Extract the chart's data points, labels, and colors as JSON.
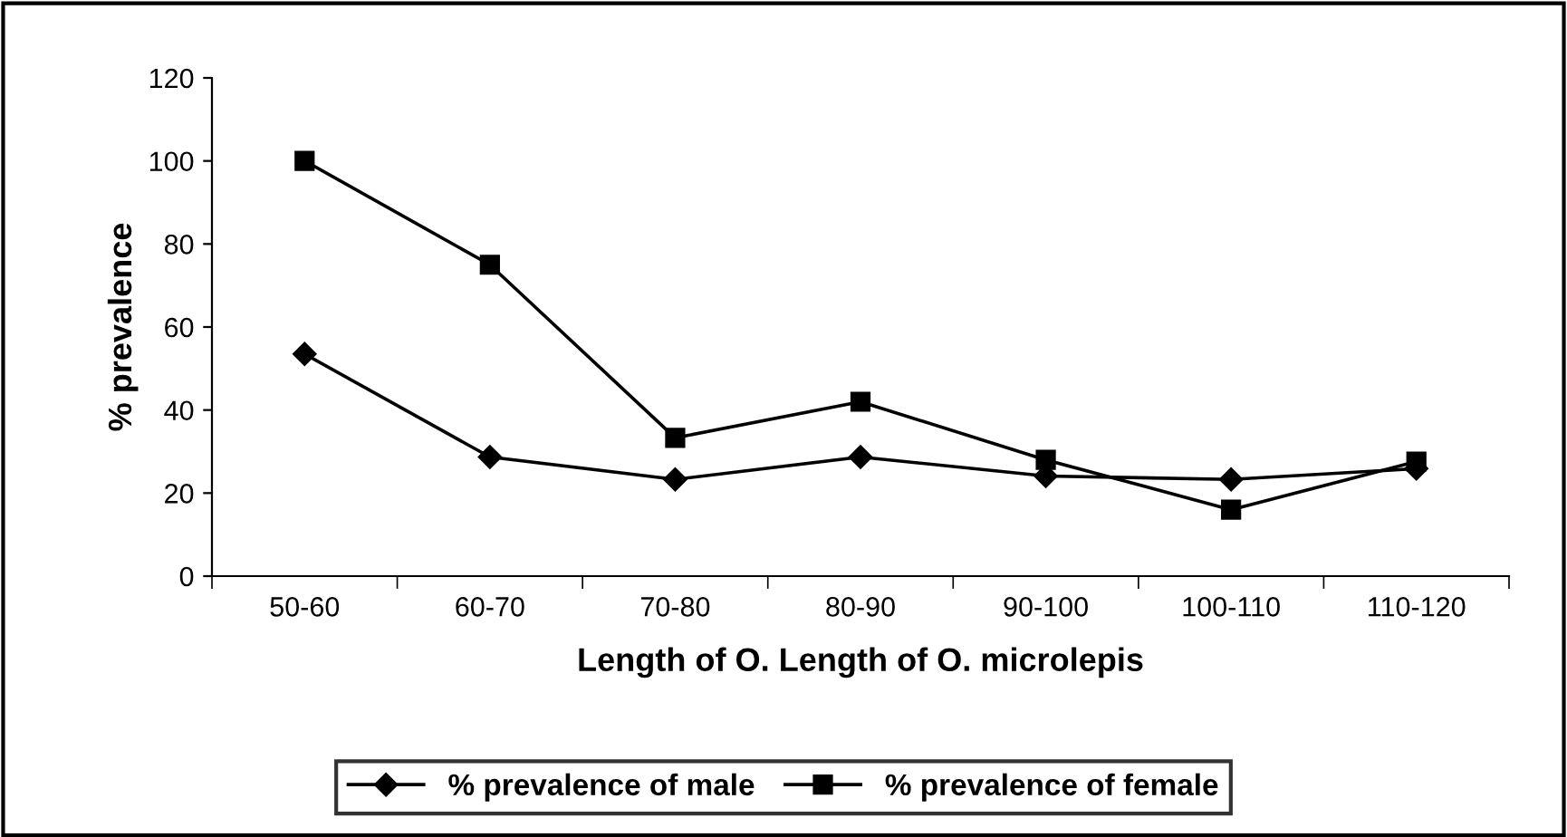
{
  "chart_data": {
    "type": "line",
    "xlabel": "Length of O. Length of O. microlepis",
    "ylabel": "% prevalence",
    "categories": [
      "50-60",
      "60-70",
      "70-80",
      "80-90",
      "90-100",
      "100-110",
      "110-120"
    ],
    "series": [
      {
        "name": "% prevalence of male",
        "color": "#000000",
        "marker": "diamond",
        "values": [
          53.5,
          28.7,
          23.3,
          28.7,
          24.1,
          23.3,
          25.9
        ]
      },
      {
        "name": "% prevalence of female",
        "color": "#000000",
        "marker": "square",
        "values": [
          100,
          75,
          33.3,
          42,
          28,
          16,
          27.6
        ]
      }
    ],
    "ylim": [
      0,
      120
    ],
    "yticks": [
      0,
      20,
      40,
      60,
      80,
      100,
      120
    ],
    "grid": false,
    "legend": "bottom",
    "line_style": "solid"
  }
}
